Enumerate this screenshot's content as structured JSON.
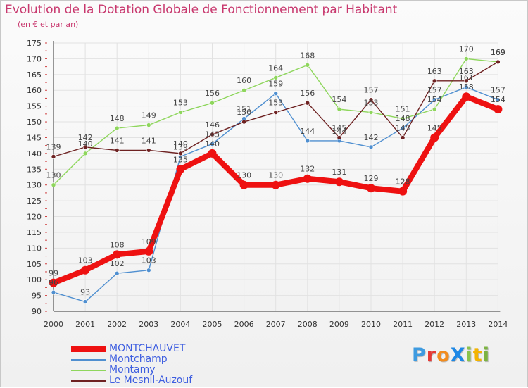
{
  "title": "Evolution de la Dotation Globale de Fonctionnement par Habitant",
  "subtitle": "(en € et par an)",
  "logo": {
    "text": "ProXiti",
    "colors": [
      "#3f9be0",
      "#e53935",
      "#f28c1e",
      "#1e88e5",
      "#8bc34a",
      "#f4b400",
      "#7cb342"
    ]
  },
  "chart_data": {
    "type": "line",
    "title": "Evolution de la Dotation Globale de Fonctionnement par Habitant",
    "subtitle": "(en € et par an)",
    "xlabel": "",
    "ylabel": "",
    "ylim": [
      90,
      175
    ],
    "yticks": [
      "90",
      "95",
      "100",
      "105",
      "110",
      "115",
      "120",
      "125",
      "130",
      "135",
      "140",
      "145",
      "150",
      "155",
      "160",
      "165",
      "170",
      "175"
    ],
    "categories": [
      "2000",
      "2001",
      "2002",
      "2003",
      "2004",
      "2005",
      "2006",
      "2007",
      "2008",
      "2009",
      "2010",
      "2011",
      "2012",
      "2013",
      "2014"
    ],
    "grid": true,
    "legend_position": "bottom-left",
    "series": [
      {
        "name": "MONTCHAUVET",
        "color": "#ee1111",
        "thick": true,
        "values": [
          99,
          103,
          108,
          109,
          135,
          140,
          130,
          130,
          132,
          131,
          129,
          128,
          145,
          158,
          154
        ]
      },
      {
        "name": "Montchamp",
        "color": "#4f8fd0",
        "thick": false,
        "values": [
          96,
          93,
          102,
          103,
          139,
          143,
          151,
          159,
          144,
          144,
          142,
          148,
          157,
          161,
          157
        ]
      },
      {
        "name": "Montamy",
        "color": "#8ed65c",
        "thick": false,
        "values": [
          130,
          140,
          148,
          149,
          153,
          156,
          160,
          164,
          168,
          154,
          153,
          151,
          154,
          170,
          169
        ]
      },
      {
        "name": "Le Mesnil-Auzouf",
        "color": "#6e2222",
        "thick": false,
        "values": [
          139,
          142,
          141,
          141,
          140,
          146,
          150,
          153,
          156,
          145,
          157,
          145,
          163,
          163,
          169
        ]
      }
    ]
  }
}
